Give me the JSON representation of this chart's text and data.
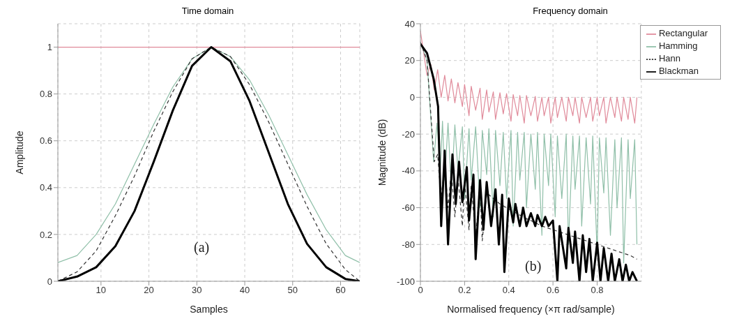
{
  "chart_data": [
    {
      "type": "line",
      "title": "Time domain",
      "xlabel": "Samples",
      "ylabel": "Amplitude",
      "xlim": [
        1,
        64
      ],
      "xticks": [
        10,
        20,
        30,
        40,
        50,
        60
      ],
      "ylim": [
        0,
        1.1
      ],
      "yticks": [
        0,
        0.2,
        0.4,
        0.6,
        0.8,
        1
      ],
      "grid": true,
      "legend": false,
      "annotations": [
        "(a)"
      ],
      "series": [
        {
          "color": "#e08a9a",
          "line_style": "solid",
          "x": [
            1,
            64
          ],
          "values": [
            1,
            1
          ]
        },
        {
          "color": "#8fbfa8",
          "line_style": "solid",
          "x": [
            1,
            5,
            9,
            13,
            17,
            21,
            25,
            29,
            33,
            37,
            41,
            45,
            49,
            53,
            57,
            61,
            64
          ],
          "values": [
            0.08,
            0.11,
            0.2,
            0.33,
            0.5,
            0.67,
            0.83,
            0.95,
            1,
            0.96,
            0.86,
            0.71,
            0.54,
            0.37,
            0.22,
            0.11,
            0.08
          ]
        },
        {
          "color": "#333333",
          "line_style": "dashed",
          "x": [
            1,
            5,
            9,
            13,
            17,
            21,
            25,
            29,
            33,
            37,
            41,
            45,
            49,
            53,
            57,
            61,
            64
          ],
          "values": [
            0,
            0.04,
            0.13,
            0.28,
            0.45,
            0.64,
            0.81,
            0.95,
            1,
            0.96,
            0.84,
            0.68,
            0.5,
            0.32,
            0.16,
            0.05,
            0
          ]
        },
        {
          "color": "#000000",
          "line_style": "solid",
          "x": [
            1,
            5,
            9,
            13,
            17,
            21,
            25,
            29,
            33,
            37,
            41,
            45,
            49,
            53,
            57,
            61,
            64
          ],
          "values": [
            0,
            0.02,
            0.06,
            0.15,
            0.3,
            0.51,
            0.73,
            0.92,
            1,
            0.94,
            0.77,
            0.55,
            0.33,
            0.16,
            0.06,
            0.01,
            0
          ]
        }
      ]
    },
    {
      "type": "line",
      "title": "Frequency domain",
      "xlabel": "Normalised frequency  (×π rad/sample)",
      "ylabel": "Magnitude (dB)",
      "xlim": [
        0,
        1
      ],
      "xticks": [
        0,
        0.2,
        0.4,
        0.6,
        0.8
      ],
      "ylim": [
        -100,
        40
      ],
      "yticks": [
        -100,
        -80,
        -60,
        -40,
        -20,
        0,
        20,
        40
      ],
      "grid": true,
      "legend": "top right",
      "annotations": [
        "(b)"
      ],
      "series": [
        {
          "name": "Rectangular",
          "color": "#e08a9a",
          "line_style": "solid",
          "x": [
            0,
            0.03,
            0.047,
            0.0625,
            0.078,
            0.094,
            0.11,
            0.125,
            0.14,
            0.156,
            0.17,
            0.19,
            0.2,
            0.22,
            0.23,
            0.25,
            0.27,
            0.28,
            0.3,
            0.31,
            0.33,
            0.34,
            0.36,
            0.375,
            0.39,
            0.41,
            0.42,
            0.44,
            0.45,
            0.47,
            0.48,
            0.5,
            0.52,
            0.53,
            0.55,
            0.56,
            0.58,
            0.59,
            0.61,
            0.62,
            0.64,
            0.66,
            0.67,
            0.69,
            0.7,
            0.72,
            0.73,
            0.75,
            0.77,
            0.78,
            0.8,
            0.81,
            0.83,
            0.84,
            0.86,
            0.88,
            0.89,
            0.91,
            0.92,
            0.94,
            0.95,
            0.97,
            0.98
          ],
          "values": [
            36,
            12,
            18,
            4,
            15,
            0,
            12,
            -2,
            10,
            -3,
            8,
            -5,
            7,
            -10,
            6,
            -7,
            5,
            -12,
            4,
            -8,
            3,
            -12,
            2.5,
            -9,
            2,
            -13,
            1.5,
            -10,
            1,
            -14,
            1,
            -10,
            0.5,
            -13,
            0,
            -10,
            0,
            -14,
            0,
            -11,
            0,
            -13,
            0,
            -10,
            0,
            -14,
            0,
            -11,
            0,
            -13,
            0,
            -10,
            0,
            -14,
            0,
            -11,
            0,
            -13,
            0,
            -12,
            0,
            -14,
            0
          ]
        },
        {
          "name": "Hamming",
          "color": "#8fbfa8",
          "line_style": "solid",
          "x": [
            0,
            0.03,
            0.06,
            0.075,
            0.09,
            0.1,
            0.11,
            0.125,
            0.14,
            0.156,
            0.17,
            0.19,
            0.2,
            0.22,
            0.23,
            0.25,
            0.27,
            0.28,
            0.3,
            0.31,
            0.33,
            0.34,
            0.36,
            0.375,
            0.39,
            0.41,
            0.42,
            0.44,
            0.45,
            0.47,
            0.48,
            0.5,
            0.52,
            0.53,
            0.55,
            0.56,
            0.58,
            0.59,
            0.61,
            0.62,
            0.64,
            0.66,
            0.67,
            0.69,
            0.7,
            0.72,
            0.73,
            0.75,
            0.77,
            0.78,
            0.8,
            0.81,
            0.83,
            0.84,
            0.86,
            0.88,
            0.89,
            0.91,
            0.92,
            0.94,
            0.95,
            0.97,
            0.98
          ],
          "values": [
            30,
            20,
            -35,
            -14,
            -40,
            -13,
            -45,
            -14,
            -50,
            -15,
            -40,
            -16,
            -55,
            -17,
            -45,
            -16,
            -60,
            -18,
            -42,
            -17,
            -65,
            -18,
            -48,
            -19,
            -55,
            -18,
            -70,
            -19,
            -45,
            -19,
            -60,
            -20,
            -50,
            -19,
            -75,
            -20,
            -48,
            -20,
            -65,
            -21,
            -55,
            -20,
            -80,
            -21,
            -50,
            -21,
            -70,
            -22,
            -58,
            -21,
            -85,
            -22,
            -52,
            -22,
            -75,
            -23,
            -60,
            -22,
            -90,
            -23,
            -55,
            -23,
            -80
          ]
        },
        {
          "name": "Hann",
          "color": "#333333",
          "line_style": "dashed",
          "x": [
            0,
            0.03,
            0.0625,
            0.078,
            0.094,
            0.11,
            0.125,
            0.14,
            0.156,
            0.17,
            0.19,
            0.2,
            0.22,
            0.23,
            0.25,
            0.27,
            0.28,
            0.3,
            0.33,
            0.36,
            0.39,
            0.42,
            0.45,
            0.48,
            0.5,
            0.55,
            0.6,
            0.65,
            0.7,
            0.75,
            0.8,
            0.85,
            0.9,
            0.95,
            0.98
          ],
          "values": [
            30,
            20,
            -35,
            -31,
            -55,
            -36,
            -60,
            -40,
            -65,
            -43,
            -70,
            -46,
            -72,
            -48,
            -75,
            -50,
            -78,
            -52,
            -55,
            -58,
            -60,
            -62,
            -64,
            -66,
            -67,
            -70,
            -72,
            -74,
            -76,
            -78,
            -80,
            -82,
            -84,
            -86,
            -88
          ]
        },
        {
          "name": "Blackman",
          "color": "#000000",
          "line_style": "solid",
          "x": [
            0,
            0.03,
            0.06,
            0.08,
            0.094,
            0.11,
            0.125,
            0.145,
            0.16,
            0.175,
            0.19,
            0.21,
            0.22,
            0.24,
            0.25,
            0.27,
            0.285,
            0.3,
            0.32,
            0.34,
            0.355,
            0.37,
            0.38,
            0.4,
            0.42,
            0.43,
            0.45,
            0.465,
            0.48,
            0.5,
            0.52,
            0.53,
            0.55,
            0.565,
            0.58,
            0.6,
            0.62,
            0.63,
            0.66,
            0.67,
            0.69,
            0.7,
            0.72,
            0.735,
            0.75,
            0.765,
            0.78,
            0.8,
            0.815,
            0.83,
            0.85,
            0.865,
            0.88,
            0.9,
            0.915,
            0.93,
            0.945,
            0.96,
            0.98
          ],
          "values": [
            29,
            24,
            10,
            -5,
            -70,
            -29,
            -80,
            -31,
            -58,
            -35,
            -57,
            -38,
            -67,
            -42,
            -88,
            -45,
            -72,
            -46,
            -70,
            -50,
            -80,
            -53,
            -95,
            -55,
            -68,
            -58,
            -70,
            -60,
            -70,
            -63,
            -70,
            -64,
            -70,
            -65,
            -70,
            -67,
            -100,
            -70,
            -93,
            -71,
            -90,
            -73,
            -100,
            -75,
            -95,
            -77,
            -100,
            -79,
            -100,
            -82,
            -100,
            -85,
            -100,
            -88,
            -100,
            -91,
            -100,
            -95,
            -100
          ]
        }
      ]
    }
  ]
}
